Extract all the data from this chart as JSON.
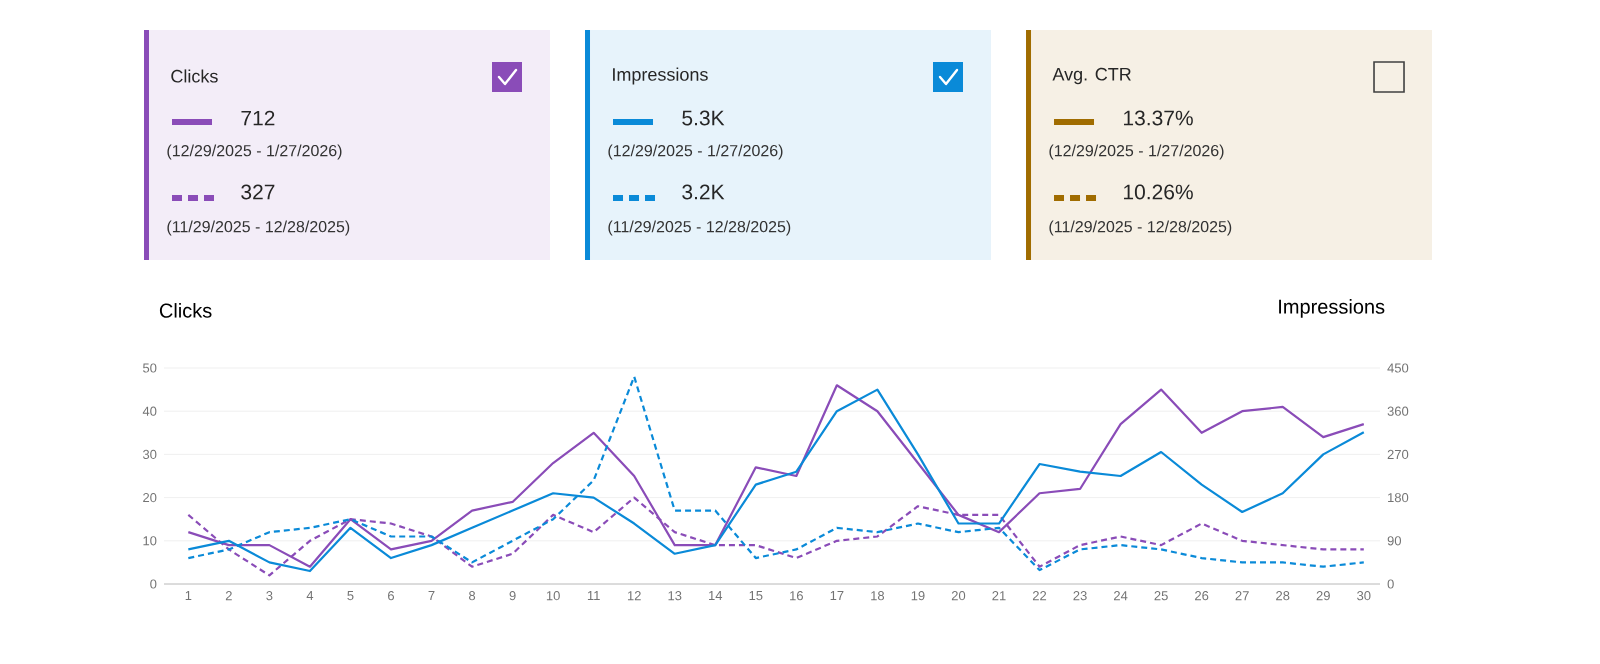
{
  "chart_data": [
    {
      "type": "other",
      "annotations": [
        "Clicks",
        "712",
        "(12/29/2025 - 1/27/2026)",
        "327",
        "(11/29/2025 - 12/28/2025)",
        "Impressions",
        "5.3K",
        "(12/29/2025 - 1/27/2026)",
        "3.2K",
        "(11/29/2025 - 12/28/2025)",
        "Avg. CTR",
        "13.37%",
        "(12/29/2025 - 1/27/2026)",
        "10.26%",
        "(11/29/2025 - 12/28/2025)"
      ],
      "colors": [
        "#8a4cb8",
        "#0a8ad8",
        "#a06c00"
      ]
    },
    {
      "type": "line",
      "categories": [
        "1",
        "2",
        "3",
        "4",
        "5",
        "6",
        "7",
        "8",
        "9",
        "10",
        "11",
        "12",
        "13",
        "14",
        "15",
        "16",
        "17",
        "18",
        "19",
        "20",
        "21",
        "22",
        "23",
        "24",
        "25",
        "26",
        "27",
        "28",
        "29",
        "30"
      ],
      "ylabel": "Clicks",
      "y2label": "Impressions",
      "ylim": [
        0,
        50
      ],
      "yticks": [
        0,
        10,
        20,
        30,
        40,
        50
      ],
      "y2lim": [
        0,
        450
      ],
      "y2ticks": [
        0,
        90,
        180,
        270,
        360,
        450
      ],
      "grid": "y",
      "series": [
        {
          "color": "#8a4cb8",
          "line_style": "dashed",
          "values": [
            16,
            8,
            2,
            10,
            15,
            14,
            11,
            4,
            7,
            16,
            12,
            20,
            12,
            9,
            9,
            6,
            10,
            11,
            18,
            16,
            16,
            4,
            9,
            11,
            9,
            14,
            10,
            9,
            8,
            8
          ]
        },
        {
          "color": "#0a8ad8",
          "line_style": "dashed",
          "axis": "y2",
          "values": [
            54,
            72,
            108,
            117,
            135,
            99,
            99,
            45,
            90,
            135,
            216,
            432,
            153,
            153,
            54,
            72,
            117,
            108,
            126,
            108,
            117,
            29,
            72,
            81,
            72,
            54,
            45,
            45,
            36,
            45
          ]
        },
        {
          "color": "#8a4cb8",
          "line_style": "solid",
          "values": [
            12,
            9,
            9,
            4,
            15,
            8,
            10,
            17,
            19,
            28,
            35,
            25,
            9,
            9,
            27,
            25,
            46,
            40,
            28,
            16,
            12,
            21,
            22,
            37,
            45,
            35,
            40,
            41,
            34,
            37
          ]
        },
        {
          "color": "#0a8ad8",
          "line_style": "solid",
          "axis": "y2",
          "values": [
            72,
            90,
            45,
            27,
            117,
            54,
            81,
            117,
            153,
            189,
            180,
            126,
            63,
            81,
            207,
            234,
            360,
            405,
            270,
            126,
            126,
            250,
            234,
            225,
            275,
            207,
            150,
            189,
            270,
            316
          ]
        }
      ]
    }
  ]
}
